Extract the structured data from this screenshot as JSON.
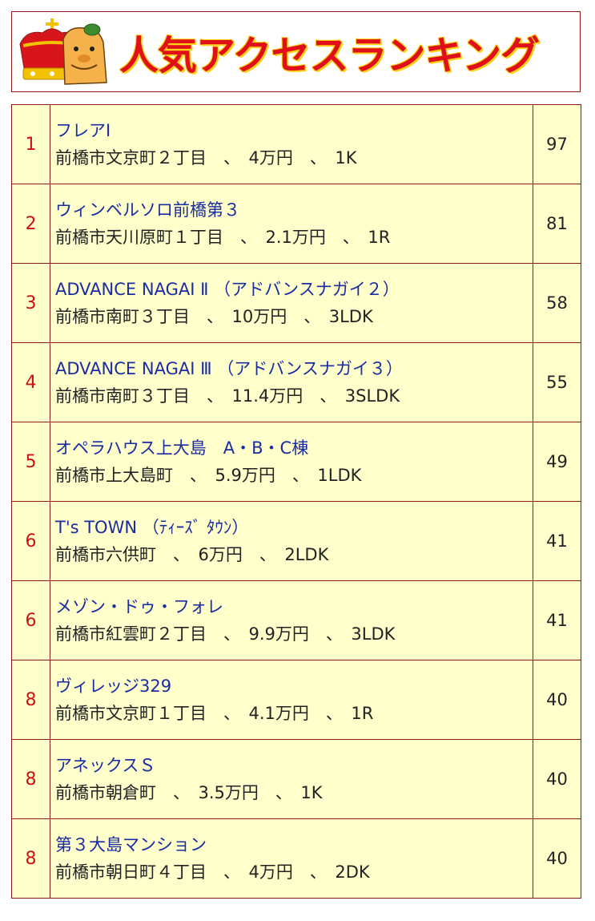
{
  "banner": {
    "title": "人気アクセスランキング"
  },
  "ranking": [
    {
      "rank": "1",
      "name": "フレアⅠ",
      "address": "前橋市文京町２丁目",
      "price": "4万円",
      "layout": "1K",
      "count": "97"
    },
    {
      "rank": "2",
      "name": "ウィンベルソロ前橋第３",
      "address": "前橋市天川原町１丁目",
      "price": "2.1万円",
      "layout": "1R",
      "count": "81"
    },
    {
      "rank": "3",
      "name": "ADVANCE NAGAI Ⅱ （アドバンスナガイ２）",
      "address": "前橋市南町３丁目",
      "price": "10万円",
      "layout": "3LDK",
      "count": "58"
    },
    {
      "rank": "4",
      "name": "ADVANCE NAGAI Ⅲ （アドバンスナガイ３）",
      "address": "前橋市南町３丁目",
      "price": "11.4万円",
      "layout": "3SLDK",
      "count": "55"
    },
    {
      "rank": "5",
      "name": "オペラハウス上大島　A・B・C棟",
      "address": "前橋市上大島町",
      "price": "5.9万円",
      "layout": "1LDK",
      "count": "49"
    },
    {
      "rank": "6",
      "name": "T's TOWN （ﾃｨｰｽﾞ ﾀｳﾝ）",
      "address": "前橋市六供町",
      "price": "6万円",
      "layout": "2LDK",
      "count": "41"
    },
    {
      "rank": "6",
      "name": "メゾン・ドゥ・フォレ",
      "address": "前橋市紅雲町２丁目",
      "price": "9.9万円",
      "layout": "3LDK",
      "count": "41"
    },
    {
      "rank": "8",
      "name": "ヴィレッジ329",
      "address": "前橋市文京町１丁目",
      "price": "4.1万円",
      "layout": "1R",
      "count": "40"
    },
    {
      "rank": "8",
      "name": "アネックスＳ",
      "address": "前橋市朝倉町",
      "price": "3.5万円",
      "layout": "1K",
      "count": "40"
    },
    {
      "rank": "8",
      "name": "第３大島マンション",
      "address": "前橋市朝日町４丁目",
      "price": "4万円",
      "layout": "2DK",
      "count": "40"
    }
  ],
  "separator": "、",
  "colors": {
    "link": "#1a2ca0",
    "rank": "#cc1111",
    "cell_bg": "#ffffcc",
    "border": "#8b1a1a",
    "title": "#e0101a"
  }
}
